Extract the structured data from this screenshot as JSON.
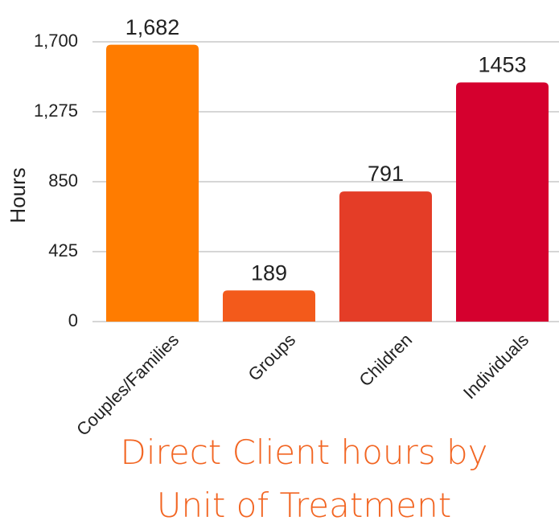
{
  "chart_data": {
    "type": "bar",
    "title": "Direct Client hours by Unit of Treatment",
    "y_label": "Hours",
    "categories": [
      "Couples/Families",
      "Groups",
      "Children",
      "Individuals"
    ],
    "values": [
      1682,
      189,
      791,
      1453
    ],
    "value_labels": [
      "1,682",
      "189",
      "791",
      "1453"
    ],
    "colors": [
      "#ff7c00",
      "#f35a1b",
      "#e43d27",
      "#d5002e"
    ],
    "ylim": [
      0,
      1700
    ],
    "yticks": [
      0,
      425,
      850,
      {
        "value": 1275,
        "label": "1,275"
      },
      {
        "value": 1700,
        "label": "1,700"
      }
    ],
    "grid": true
  }
}
